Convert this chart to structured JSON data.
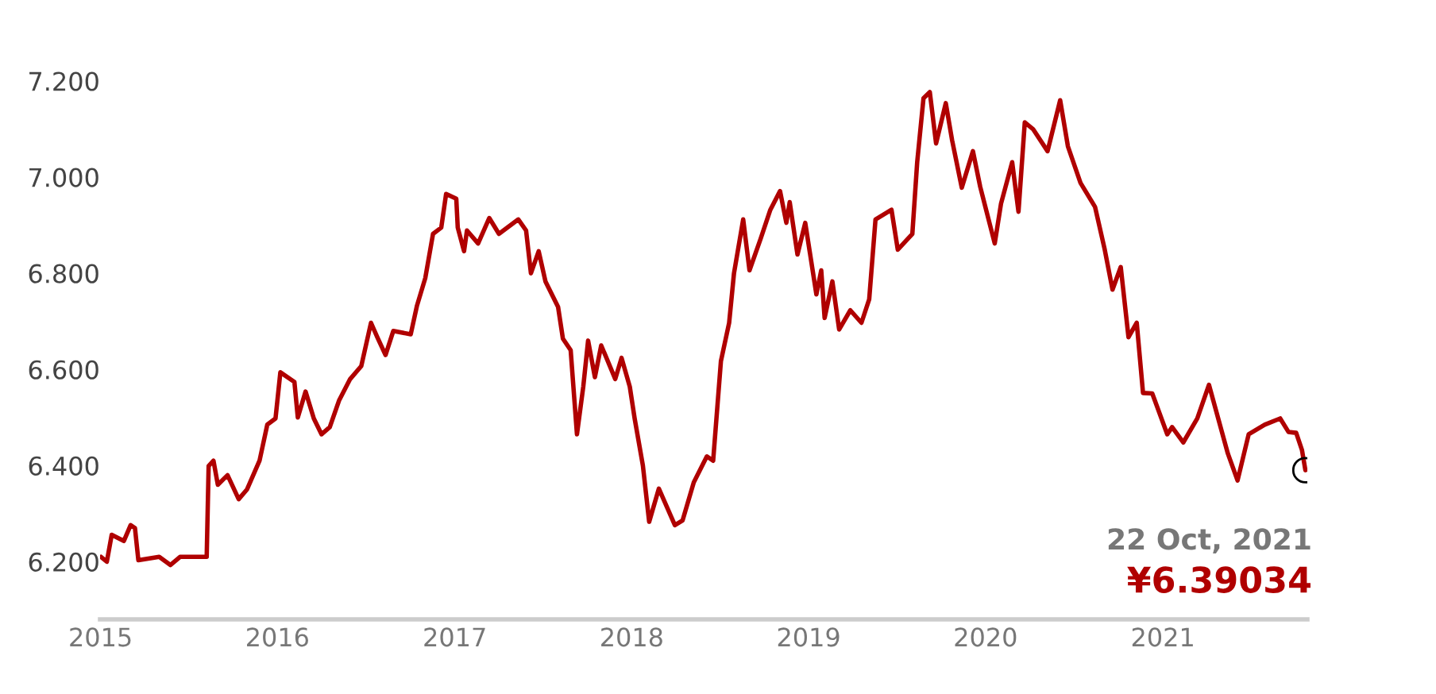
{
  "chart_data": {
    "type": "line",
    "x": [
      "2015-01-02",
      "2015-01-14",
      "2015-01-24",
      "2015-02-18",
      "2015-03-04",
      "2015-03-13",
      "2015-03-20",
      "2015-05-02",
      "2015-05-25",
      "2015-06-14",
      "2015-08-08",
      "2015-08-12",
      "2015-08-22",
      "2015-08-31",
      "2015-09-20",
      "2015-10-13",
      "2015-10-30",
      "2015-11-25",
      "2015-12-11",
      "2015-12-28",
      "2016-01-07",
      "2016-02-05",
      "2016-02-12",
      "2016-02-28",
      "2016-03-16",
      "2016-04-01",
      "2016-04-18",
      "2016-05-07",
      "2016-05-30",
      "2016-06-22",
      "2016-07-12",
      "2016-07-25",
      "2016-08-11",
      "2016-08-27",
      "2016-10-02",
      "2016-10-15",
      "2016-11-01",
      "2016-11-17",
      "2016-12-04",
      "2016-12-14",
      "2017-01-04",
      "2017-01-07",
      "2017-01-20",
      "2017-01-26",
      "2017-02-18",
      "2017-03-13",
      "2017-04-02",
      "2017-05-12",
      "2017-05-28",
      "2017-06-07",
      "2017-06-23",
      "2017-07-07",
      "2017-08-02",
      "2017-08-12",
      "2017-08-28",
      "2017-09-10",
      "2017-09-23",
      "2017-10-03",
      "2017-10-17",
      "2017-10-30",
      "2017-11-28",
      "2017-12-11",
      "2017-12-28",
      "2018-01-07",
      "2018-01-24",
      "2018-02-06",
      "2018-02-26",
      "2018-03-31",
      "2018-04-16",
      "2018-05-09",
      "2018-06-05",
      "2018-06-18",
      "2018-07-04",
      "2018-07-21",
      "2018-07-31",
      "2018-08-19",
      "2018-09-01",
      "2018-09-24",
      "2018-10-14",
      "2018-11-03",
      "2018-11-16",
      "2018-11-23",
      "2018-12-09",
      "2018-12-25",
      "2019-01-17",
      "2019-01-27",
      "2019-02-03",
      "2019-02-19",
      "2019-03-05",
      "2019-03-28",
      "2019-04-20",
      "2019-05-06",
      "2019-05-19",
      "2019-06-21",
      "2019-07-04",
      "2019-08-03",
      "2019-08-13",
      "2019-08-26",
      "2019-09-08",
      "2019-09-21",
      "2019-10-11",
      "2019-10-24",
      "2019-11-13",
      "2019-12-06",
      "2019-12-21",
      "2020-01-20",
      "2020-02-02",
      "2020-02-25",
      "2020-03-09",
      "2020-03-22",
      "2020-04-08",
      "2020-05-08",
      "2020-06-03",
      "2020-06-19",
      "2020-07-15",
      "2020-08-14",
      "2020-09-03",
      "2020-09-19",
      "2020-10-06",
      "2020-10-22",
      "2020-11-08",
      "2020-11-21",
      "2020-12-10",
      "2021-01-10",
      "2021-01-20",
      "2021-02-12",
      "2021-03-13",
      "2021-04-06",
      "2021-05-15",
      "2021-06-04",
      "2021-06-27",
      "2021-07-30",
      "2021-08-31",
      "2021-09-17",
      "2021-10-03",
      "2021-10-15",
      "2021-10-22"
    ],
    "series": [
      {
        "color": "#b00000",
        "values": [
          6.21,
          6.2,
          6.256,
          6.243,
          6.276,
          6.27,
          6.203,
          6.21,
          6.193,
          6.21,
          6.21,
          6.399,
          6.41,
          6.36,
          6.38,
          6.33,
          6.35,
          6.41,
          6.485,
          6.498,
          6.594,
          6.574,
          6.5,
          6.554,
          6.498,
          6.465,
          6.48,
          6.535,
          6.58,
          6.607,
          6.697,
          6.667,
          6.63,
          6.68,
          6.673,
          6.733,
          6.79,
          6.882,
          6.895,
          6.965,
          6.955,
          6.895,
          6.846,
          6.889,
          6.862,
          6.915,
          6.882,
          6.912,
          6.889,
          6.8,
          6.846,
          6.783,
          6.73,
          6.664,
          6.64,
          6.465,
          6.564,
          6.66,
          6.584,
          6.65,
          6.58,
          6.624,
          6.564,
          6.498,
          6.4,
          6.283,
          6.352,
          6.276,
          6.286,
          6.365,
          6.419,
          6.41,
          6.617,
          6.697,
          6.8,
          6.912,
          6.806,
          6.872,
          6.932,
          6.971,
          6.905,
          6.948,
          6.839,
          6.905,
          6.756,
          6.806,
          6.707,
          6.783,
          6.683,
          6.723,
          6.697,
          6.746,
          6.912,
          6.932,
          6.849,
          6.882,
          7.031,
          7.164,
          7.177,
          7.07,
          7.154,
          7.077,
          6.978,
          7.054,
          6.98,
          6.862,
          6.945,
          7.031,
          6.928,
          7.114,
          7.1,
          7.054,
          7.16,
          7.064,
          6.988,
          6.938,
          6.849,
          6.766,
          6.813,
          6.667,
          6.697,
          6.551,
          6.55,
          6.465,
          6.48,
          6.448,
          6.498,
          6.568,
          6.425,
          6.369,
          6.465,
          6.485,
          6.498,
          6.47,
          6.468,
          6.432,
          6.39034
        ]
      }
    ],
    "xlim": [
      "2014-12-31",
      "2021-10-26"
    ],
    "ylim": [
      6.08,
      7.2
    ],
    "xticks": [
      {
        "value": "2015-01-01",
        "label": "2015"
      },
      {
        "value": "2016-01-01",
        "label": "2016"
      },
      {
        "value": "2017-01-01",
        "label": "2017"
      },
      {
        "value": "2018-01-01",
        "label": "2018"
      },
      {
        "value": "2019-01-01",
        "label": "2019"
      },
      {
        "value": "2020-01-01",
        "label": "2020"
      },
      {
        "value": "2021-01-01",
        "label": "2021"
      }
    ],
    "yticks": [
      {
        "value": 6.2,
        "label": "6.200"
      },
      {
        "value": 6.4,
        "label": "6.400"
      },
      {
        "value": 6.6,
        "label": "6.600"
      },
      {
        "value": 6.8,
        "label": "6.800"
      },
      {
        "value": 7.0,
        "label": "7.000"
      },
      {
        "value": 7.2,
        "label": "7.200"
      }
    ],
    "annotations": [
      "22 Oct, 2021",
      "¥6.39034"
    ],
    "grid": false,
    "legend": false,
    "marker": "none",
    "line_style": "solid"
  }
}
